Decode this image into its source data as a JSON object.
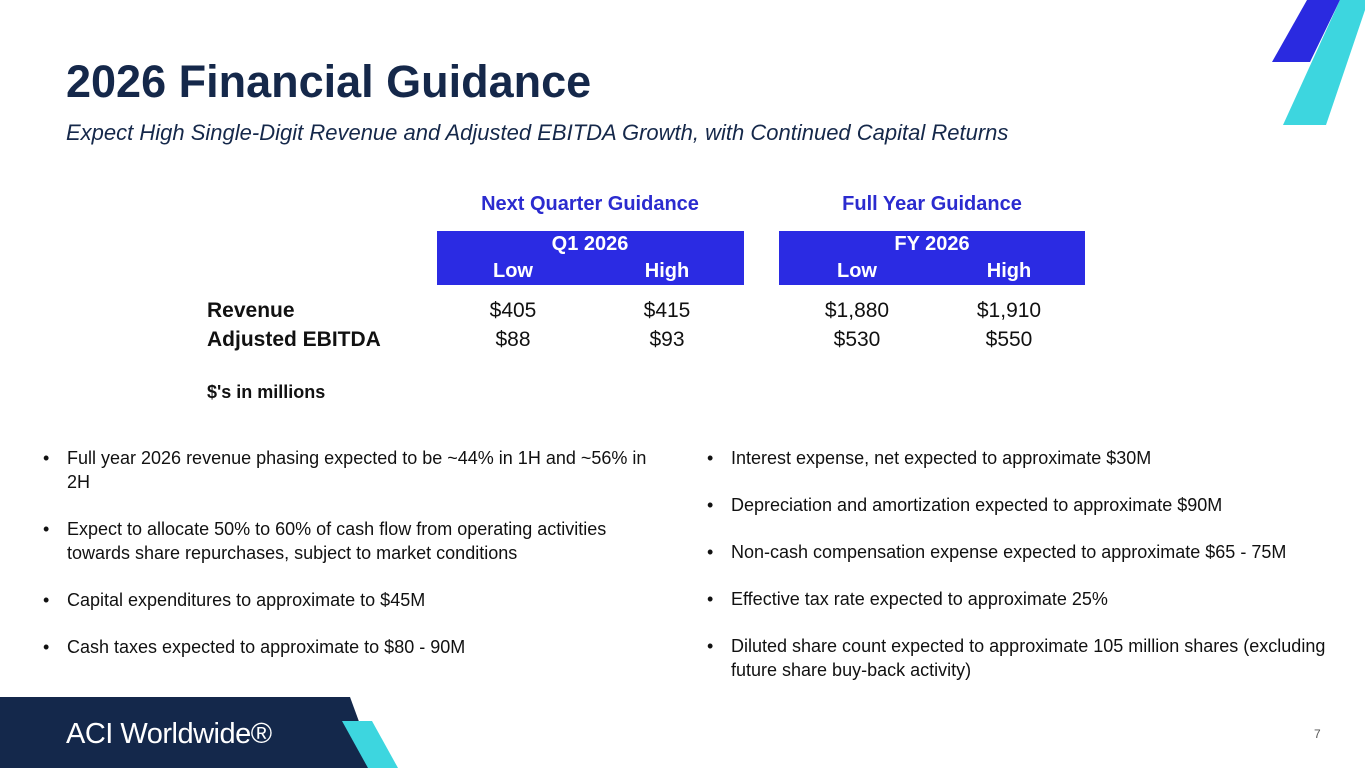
{
  "header": {
    "title": "2026 Financial Guidance",
    "subtitle": "Expect High Single-Digit Revenue and Adjusted EBITDA Growth, with Continued Capital Returns"
  },
  "table": {
    "groups": [
      {
        "heading": "Next Quarter Guidance",
        "period": "Q1 2026",
        "columns": [
          "Low",
          "High"
        ]
      },
      {
        "heading": "Full Year Guidance",
        "period": "FY 2026",
        "columns": [
          "Low",
          "High"
        ]
      }
    ],
    "rows": [
      [
        "Revenue",
        "$405",
        "$415",
        "$1,880",
        "$1,910"
      ],
      [
        "Adjusted EBITDA",
        "$88",
        "$93",
        "$530",
        "$550"
      ]
    ],
    "note": "$'s in millions"
  },
  "bullets_left": [
    "Full year 2026 revenue phasing expected to be ~44% in 1H and ~56% in 2H",
    "Expect to allocate 50% to 60% of cash flow from operating activities towards share repurchases, subject to market conditions",
    "Capital expenditures to approximate to $45M",
    "Cash taxes expected to approximate to $80 - 90M"
  ],
  "bullets_right": [
    "Interest expense, net expected to approximate $30M",
    "Depreciation and amortization expected to approximate $90M",
    "Non-cash compensation expense expected to approximate $65 - 75M",
    "Effective tax rate expected to approximate 25%",
    "Diluted share count expected to approximate 105 million shares (excluding future share buy-back activity)"
  ],
  "footer": {
    "logo": "ACI Worldwide®",
    "page_number": "7"
  }
}
